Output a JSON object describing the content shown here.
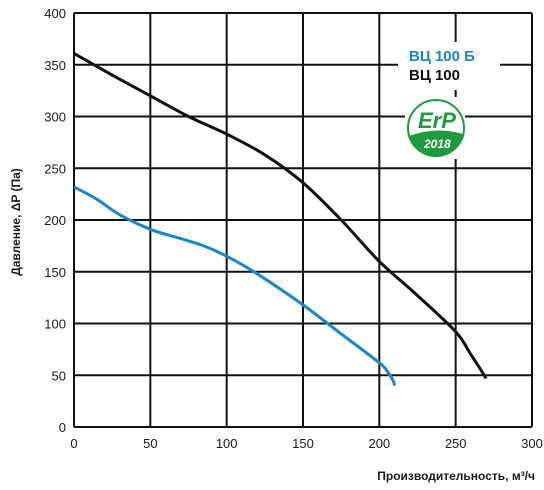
{
  "chart_data": {
    "type": "line",
    "xlabel": "Производительность,  м³/ч",
    "ylabel": "Давление, ΔP (Па)",
    "xlim": [
      0,
      300
    ],
    "ylim": [
      0,
      400
    ],
    "x_ticks": [
      0,
      50,
      100,
      150,
      200,
      250,
      300
    ],
    "y_ticks": [
      0,
      50,
      100,
      150,
      200,
      250,
      300,
      350,
      400
    ],
    "grid": true,
    "legend_position": "top-right",
    "series": [
      {
        "name": "ВЦ 100 Б",
        "color": "#1a86c8",
        "points": [
          [
            0,
            232
          ],
          [
            15,
            220
          ],
          [
            30,
            205
          ],
          [
            50,
            191
          ],
          [
            70,
            182
          ],
          [
            85,
            175
          ],
          [
            100,
            165
          ],
          [
            120,
            148
          ],
          [
            150,
            118
          ],
          [
            175,
            90
          ],
          [
            200,
            62
          ],
          [
            206,
            52
          ],
          [
            209,
            45
          ],
          [
            210,
            40
          ]
        ]
      },
      {
        "name": "ВЦ 100",
        "color": "#111111",
        "points": [
          [
            0,
            361
          ],
          [
            25,
            340
          ],
          [
            50,
            320
          ],
          [
            75,
            300
          ],
          [
            100,
            283
          ],
          [
            125,
            263
          ],
          [
            150,
            236
          ],
          [
            175,
            200
          ],
          [
            200,
            160
          ],
          [
            225,
            127
          ],
          [
            250,
            92
          ],
          [
            260,
            70
          ],
          [
            270,
            47
          ]
        ]
      }
    ]
  },
  "badge": {
    "label": "ErP",
    "year": "2018",
    "color": "#1f9a3f"
  }
}
